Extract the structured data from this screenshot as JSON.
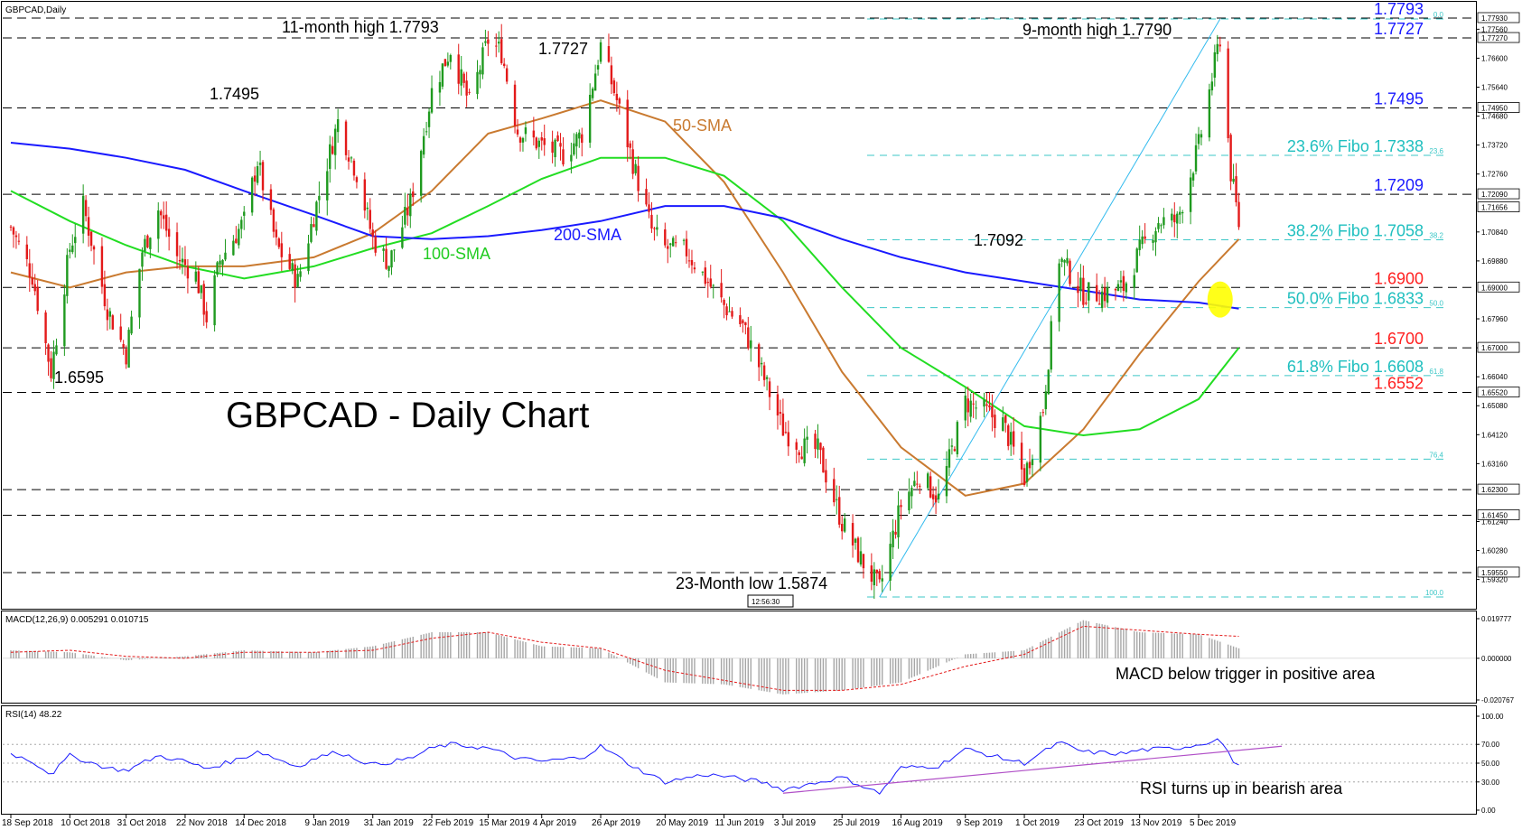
{
  "header": {
    "main_title": "GBPCAD,Daily",
    "macd_title": "MACD(12,26,9) 0.005291 0.010715",
    "rsi_title": "RSI(14) 48.22"
  },
  "chart_data": {
    "type": "candlestick",
    "title": "GBPCAD - Daily Chart",
    "x_tick_labels": [
      "18 Sep 2018",
      "10 Oct 2018",
      "31 Oct 2018",
      "22 Nov 2018",
      "14 Dec 2018",
      "9 Jan 2019",
      "31 Jan 2019",
      "22 Feb 2019",
      "15 Mar 2019",
      "4 Apr 2019",
      "26 Apr 2019",
      "20 May 2019",
      "11 Jun 2019",
      "3 Jul 2019",
      "25 Jul 2019",
      "16 Aug 2019",
      "9 Sep 2019",
      "1 Oct 2019",
      "23 Oct 2019",
      "13 Nov 2019",
      "5 Dec 2019"
    ],
    "price_axis": {
      "range": [
        1.5874,
        1.7793
      ],
      "tick_labels": [
        "1.77560",
        "1.76600",
        "1.75640",
        "1.74680",
        "1.73720",
        "1.72760",
        "1.70840",
        "1.69880",
        "1.67960",
        "1.67000",
        "1.66040",
        "1.65080",
        "1.64120",
        "1.63160",
        "1.61240",
        "1.60280",
        "1.59320"
      ],
      "tagged_levels": [
        "1.77930",
        "1.77270",
        "1.74950",
        "1.72090",
        "1.71656",
        "1.69000",
        "1.67000",
        "1.65520",
        "1.62300",
        "1.61450",
        "1.59550"
      ]
    },
    "price_path": [
      [
        "18 Sep 2018",
        1.71
      ],
      [
        "26 Sep 2018",
        1.694
      ],
      [
        "3 Oct 2018",
        1.662
      ],
      [
        "10 Oct 2018",
        1.703
      ],
      [
        "15 Oct 2018",
        1.717
      ],
      [
        "24 Oct 2018",
        1.683
      ],
      [
        "31 Oct 2018",
        1.668
      ],
      [
        "6 Nov 2018",
        1.702
      ],
      [
        "12 Nov 2018",
        1.716
      ],
      [
        "19 Nov 2018",
        1.7
      ],
      [
        "26 Nov 2018",
        1.694
      ],
      [
        "30 Nov 2018",
        1.68
      ],
      [
        "5 Dec 2018",
        1.699
      ],
      [
        "14 Dec 2018",
        1.712
      ],
      [
        "19 Dec 2018",
        1.732
      ],
      [
        "26 Dec 2018",
        1.704
      ],
      [
        "3 Jan 2019",
        1.692
      ],
      [
        "9 Jan 2019",
        1.714
      ],
      [
        "18 Jan 2019",
        1.745
      ],
      [
        "25 Jan 2019",
        1.728
      ],
      [
        "31 Jan 2019",
        1.706
      ],
      [
        "6 Feb 2019",
        1.698
      ],
      [
        "14 Feb 2019",
        1.718
      ],
      [
        "22 Feb 2019",
        1.755
      ],
      [
        "1 Mar 2019",
        1.769
      ],
      [
        "8 Mar 2019",
        1.751
      ],
      [
        "15 Mar 2019",
        1.772
      ],
      [
        "20 Mar 2019",
        1.768
      ],
      [
        "26 Mar 2019",
        1.742
      ],
      [
        "4 Apr 2019",
        1.737
      ],
      [
        "12 Apr 2019",
        1.734
      ],
      [
        "19 Apr 2019",
        1.741
      ],
      [
        "26 Apr 2019",
        1.77
      ],
      [
        "2 May 2019",
        1.752
      ],
      [
        "9 May 2019",
        1.728
      ],
      [
        "15 May 2019",
        1.709
      ],
      [
        "20 May 2019",
        1.703
      ],
      [
        "28 May 2019",
        1.702
      ],
      [
        "4 Jun 2019",
        1.693
      ],
      [
        "11 Jun 2019",
        1.684
      ],
      [
        "18 Jun 2019",
        1.677
      ],
      [
        "25 Jun 2019",
        1.662
      ],
      [
        "3 Jul 2019",
        1.643
      ],
      [
        "10 Jul 2019",
        1.637
      ],
      [
        "16 Jul 2019",
        1.636
      ],
      [
        "25 Jul 2019",
        1.612
      ],
      [
        "1 Aug 2019",
        1.6
      ],
      [
        "8 Aug 2019",
        1.59
      ],
      [
        "16 Aug 2019",
        1.618
      ],
      [
        "23 Aug 2019",
        1.628
      ],
      [
        "30 Aug 2019",
        1.62
      ],
      [
        "9 Sep 2019",
        1.652
      ],
      [
        "16 Sep 2019",
        1.649
      ],
      [
        "23 Sep 2019",
        1.645
      ],
      [
        "1 Oct 2019",
        1.627
      ],
      [
        "8 Oct 2019",
        1.65
      ],
      [
        "14 Oct 2019",
        1.7
      ],
      [
        "23 Oct 2019",
        1.688
      ],
      [
        "31 Oct 2019",
        1.688
      ],
      [
        "7 Nov 2019",
        1.69
      ],
      [
        "13 Nov 2019",
        1.702
      ],
      [
        "20 Nov 2019",
        1.712
      ],
      [
        "27 Nov 2019",
        1.712
      ],
      [
        "5 Dec 2019",
        1.737
      ],
      [
        "13 Dec 2019",
        1.773
      ],
      [
        "17 Dec 2019",
        1.728
      ],
      [
        "20 Dec 2019",
        1.711
      ]
    ],
    "annotations": [
      "11-month high 1.7793",
      "1.7727",
      "1.7495",
      "1.6595",
      "9-month high 1.7790",
      "1.7092",
      "23-Month low 1.5874"
    ],
    "fibonacci_ratio_labels": [
      "0.0",
      "23.6",
      "38.2",
      "50.0",
      "61.8",
      "76.4",
      "100.0"
    ],
    "horizontal_levels": [
      {
        "label": "1.7793",
        "value": 1.7793,
        "color": "#1a1aff"
      },
      {
        "label": "1.7727",
        "value": 1.7727,
        "color": "#1a1aff"
      },
      {
        "label": "1.7495",
        "value": 1.7495,
        "color": "#1a1aff"
      },
      {
        "label": "23.6% Fibo 1.7338",
        "value": 1.7338,
        "color": "#1fbfbf"
      },
      {
        "label": "1.7209",
        "value": 1.7209,
        "color": "#1a1aff"
      },
      {
        "label": "38.2% Fibo 1.7058",
        "value": 1.7058,
        "color": "#1fbfbf"
      },
      {
        "label": "1.6900",
        "value": 1.69,
        "color": "#ff2020"
      },
      {
        "label": "50.0% Fibo 1.6833",
        "value": 1.6833,
        "color": "#1fbfbf"
      },
      {
        "label": "1.6700",
        "value": 1.67,
        "color": "#ff2020"
      },
      {
        "label": "61.8% Fibo 1.6608",
        "value": 1.6608,
        "color": "#1fbfbf"
      },
      {
        "label": "1.6552",
        "value": 1.6552,
        "color": "#ff2020"
      }
    ],
    "moving_averages": [
      {
        "label": "50-SMA",
        "color": "#c97a30",
        "path": [
          [
            "18 Sep 2018",
            1.695
          ],
          [
            "10 Oct 2018",
            1.69
          ],
          [
            "31 Oct 2018",
            1.695
          ],
          [
            "22 Nov 2018",
            1.697
          ],
          [
            "14 Dec 2018",
            1.697
          ],
          [
            "9 Jan 2019",
            1.7
          ],
          [
            "31 Jan 2019",
            1.708
          ],
          [
            "22 Feb 2019",
            1.722
          ],
          [
            "15 Mar 2019",
            1.741
          ],
          [
            "4 Apr 2019",
            1.746
          ],
          [
            "26 Apr 2019",
            1.752
          ],
          [
            "20 May 2019",
            1.745
          ],
          [
            "11 Jun 2019",
            1.725
          ],
          [
            "3 Jul 2019",
            1.695
          ],
          [
            "25 Jul 2019",
            1.662
          ],
          [
            "16 Aug 2019",
            1.637
          ],
          [
            "9 Sep 2019",
            1.621
          ],
          [
            "1 Oct 2019",
            1.625
          ],
          [
            "23 Oct 2019",
            1.643
          ],
          [
            "13 Nov 2019",
            1.668
          ],
          [
            "5 Dec 2019",
            1.692
          ],
          [
            "20 Dec 2019",
            1.706
          ]
        ]
      },
      {
        "label": "100-SMA",
        "color": "#22dd22",
        "path": [
          [
            "18 Sep 2018",
            1.722
          ],
          [
            "10 Oct 2018",
            1.712
          ],
          [
            "31 Oct 2018",
            1.704
          ],
          [
            "22 Nov 2018",
            1.697
          ],
          [
            "14 Dec 2018",
            1.693
          ],
          [
            "9 Jan 2019",
            1.697
          ],
          [
            "31 Jan 2019",
            1.703
          ],
          [
            "22 Feb 2019",
            1.708
          ],
          [
            "15 Mar 2019",
            1.717
          ],
          [
            "4 Apr 2019",
            1.726
          ],
          [
            "26 Apr 2019",
            1.733
          ],
          [
            "20 May 2019",
            1.733
          ],
          [
            "11 Jun 2019",
            1.727
          ],
          [
            "3 Jul 2019",
            1.712
          ],
          [
            "25 Jul 2019",
            1.69
          ],
          [
            "16 Aug 2019",
            1.67
          ],
          [
            "9 Sep 2019",
            1.657
          ],
          [
            "1 Oct 2019",
            1.644
          ],
          [
            "23 Oct 2019",
            1.641
          ],
          [
            "13 Nov 2019",
            1.643
          ],
          [
            "5 Dec 2019",
            1.653
          ],
          [
            "20 Dec 2019",
            1.67
          ]
        ]
      },
      {
        "label": "200-SMA",
        "color": "#1a1aff",
        "path": [
          [
            "18 Sep 2018",
            1.738
          ],
          [
            "10 Oct 2018",
            1.736
          ],
          [
            "31 Oct 2018",
            1.733
          ],
          [
            "22 Nov 2018",
            1.729
          ],
          [
            "14 Dec 2018",
            1.722
          ],
          [
            "9 Jan 2019",
            1.714
          ],
          [
            "31 Jan 2019",
            1.707
          ],
          [
            "22 Feb 2019",
            1.706
          ],
          [
            "15 Mar 2019",
            1.707
          ],
          [
            "4 Apr 2019",
            1.709
          ],
          [
            "26 Apr 2019",
            1.712
          ],
          [
            "20 May 2019",
            1.717
          ],
          [
            "11 Jun 2019",
            1.717
          ],
          [
            "3 Jul 2019",
            1.713
          ],
          [
            "25 Jul 2019",
            1.706
          ],
          [
            "16 Aug 2019",
            1.7
          ],
          [
            "9 Sep 2019",
            1.695
          ],
          [
            "1 Oct 2019",
            1.692
          ],
          [
            "23 Oct 2019",
            1.689
          ],
          [
            "13 Nov 2019",
            1.686
          ],
          [
            "5 Dec 2019",
            1.685
          ],
          [
            "20 Dec 2019",
            1.683
          ]
        ]
      }
    ],
    "macd": {
      "title": "MACD(12,26,9) 0.005291 0.010715",
      "axis_labels": [
        "0.019777",
        "0.000000",
        "-0.020767"
      ],
      "annotation": "MACD below trigger in positive area",
      "histogram_path": [
        [
          "18 Sep 2018",
          0.004
        ],
        [
          "10 Oct 2018",
          0.003
        ],
        [
          "31 Oct 2018",
          -0.001
        ],
        [
          "22 Nov 2018",
          0.001
        ],
        [
          "14 Dec 2018",
          0.004
        ],
        [
          "9 Jan 2019",
          0.003
        ],
        [
          "31 Jan 2019",
          0.006
        ],
        [
          "22 Feb 2019",
          0.013
        ],
        [
          "15 Mar 2019",
          0.013
        ],
        [
          "4 Apr 2019",
          0.006
        ],
        [
          "26 Apr 2019",
          0.005
        ],
        [
          "20 May 2019",
          -0.012
        ],
        [
          "11 Jun 2019",
          -0.013
        ],
        [
          "3 Jul 2019",
          -0.018
        ],
        [
          "25 Jul 2019",
          -0.016
        ],
        [
          "16 Aug 2019",
          -0.012
        ],
        [
          "9 Sep 2019",
          0.002
        ],
        [
          "1 Oct 2019",
          0.004
        ],
        [
          "23 Oct 2019",
          0.019
        ],
        [
          "13 Nov 2019",
          0.013
        ],
        [
          "5 Dec 2019",
          0.012
        ],
        [
          "20 Dec 2019",
          0.005
        ]
      ],
      "signal_path": [
        [
          "18 Sep 2018",
          0.003
        ],
        [
          "10 Oct 2018",
          0.004
        ],
        [
          "31 Oct 2018",
          0.001
        ],
        [
          "22 Nov 2018",
          0.0
        ],
        [
          "14 Dec 2018",
          0.003
        ],
        [
          "9 Jan 2019",
          0.003
        ],
        [
          "31 Jan 2019",
          0.004
        ],
        [
          "22 Feb 2019",
          0.01
        ],
        [
          "15 Mar 2019",
          0.013
        ],
        [
          "4 Apr 2019",
          0.008
        ],
        [
          "26 Apr 2019",
          0.005
        ],
        [
          "20 May 2019",
          -0.006
        ],
        [
          "11 Jun 2019",
          -0.011
        ],
        [
          "3 Jul 2019",
          -0.016
        ],
        [
          "25 Jul 2019",
          -0.016
        ],
        [
          "16 Aug 2019",
          -0.013
        ],
        [
          "9 Sep 2019",
          -0.004
        ],
        [
          "1 Oct 2019",
          0.002
        ],
        [
          "23 Oct 2019",
          0.016
        ],
        [
          "13 Nov 2019",
          0.014
        ],
        [
          "5 Dec 2019",
          0.012
        ],
        [
          "20 Dec 2019",
          0.011
        ]
      ]
    },
    "rsi": {
      "title": "RSI(14) 48.22",
      "axis_labels": [
        "100.00",
        "70.00",
        "50.00",
        "30.00",
        "0.00"
      ],
      "levels": [
        70,
        50,
        30
      ],
      "annotation": "RSI turns up in bearish area",
      "path": [
        [
          "18 Sep 2018",
          60
        ],
        [
          "26 Sep 2018",
          52
        ],
        [
          "3 Oct 2018",
          38
        ],
        [
          "10 Oct 2018",
          58
        ],
        [
          "24 Oct 2018",
          45
        ],
        [
          "31 Oct 2018",
          42
        ],
        [
          "12 Nov 2018",
          58
        ],
        [
          "22 Nov 2018",
          52
        ],
        [
          "30 Nov 2018",
          44
        ],
        [
          "14 Dec 2018",
          56
        ],
        [
          "19 Dec 2018",
          63
        ],
        [
          "3 Jan 2019",
          46
        ],
        [
          "9 Jan 2019",
          55
        ],
        [
          "18 Jan 2019",
          62
        ],
        [
          "31 Jan 2019",
          48
        ],
        [
          "14 Feb 2019",
          55
        ],
        [
          "22 Feb 2019",
          66
        ],
        [
          "1 Mar 2019",
          70
        ],
        [
          "15 Mar 2019",
          66
        ],
        [
          "26 Mar 2019",
          55
        ],
        [
          "4 Apr 2019",
          52
        ],
        [
          "19 Apr 2019",
          56
        ],
        [
          "26 Apr 2019",
          68
        ],
        [
          "9 May 2019",
          45
        ],
        [
          "20 May 2019",
          30
        ],
        [
          "4 Jun 2019",
          38
        ],
        [
          "11 Jun 2019",
          36
        ],
        [
          "25 Jun 2019",
          30
        ],
        [
          "3 Jul 2019",
          22
        ],
        [
          "10 Jul 2019",
          26
        ],
        [
          "25 Jul 2019",
          35
        ],
        [
          "8 Aug 2019",
          18
        ],
        [
          "16 Aug 2019",
          45
        ],
        [
          "30 Aug 2019",
          47
        ],
        [
          "9 Sep 2019",
          65
        ],
        [
          "23 Sep 2019",
          55
        ],
        [
          "1 Oct 2019",
          50
        ],
        [
          "14 Oct 2019",
          72
        ],
        [
          "23 Oct 2019",
          62
        ],
        [
          "7 Nov 2019",
          60
        ],
        [
          "13 Nov 2019",
          64
        ],
        [
          "27 Nov 2019",
          66
        ],
        [
          "5 Dec 2019",
          70
        ],
        [
          "13 Dec 2019",
          76
        ],
        [
          "17 Dec 2019",
          55
        ],
        [
          "20 Dec 2019",
          48
        ]
      ],
      "trendline": [
        [
          "3 Jul 2019",
          18
        ],
        [
          "5 Jan 2020",
          68
        ]
      ]
    },
    "fibonacci_trendline": [
      [
        "8 Aug 2019",
        1.5874
      ],
      [
        "13 Dec 2019",
        1.779
      ]
    ],
    "highlight_marker": {
      "date": "13 Dec 2019",
      "value": 1.686,
      "color": "#ffff00"
    },
    "timestamp_tag": "12:56:30",
    "sma_labels": [
      "50-SMA",
      "100-SMA",
      "200-SMA"
    ]
  }
}
